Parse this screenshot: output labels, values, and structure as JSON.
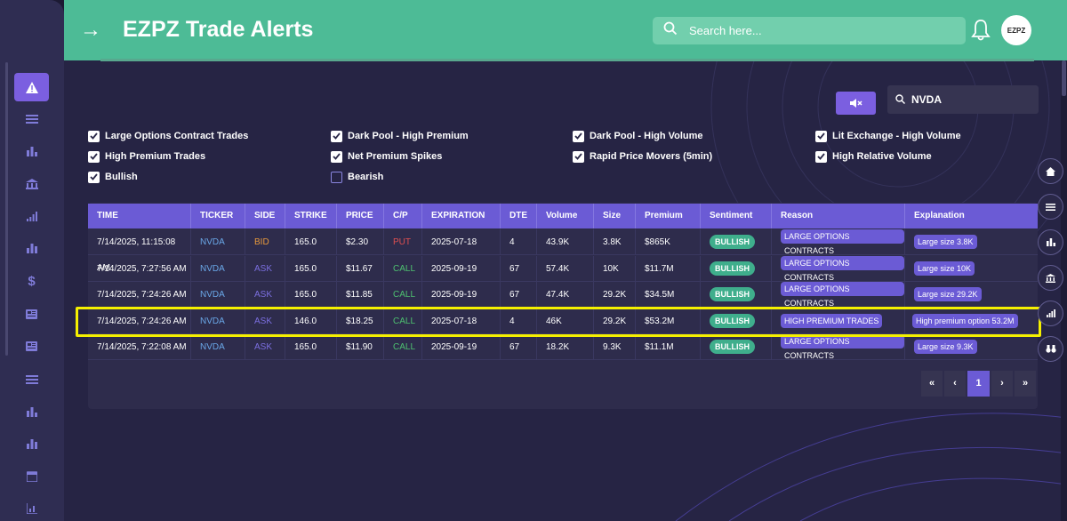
{
  "header": {
    "title": "EZPZ Trade Alerts",
    "search_placeholder": "Search here...",
    "avatar_text": "EZPZ"
  },
  "ticker_search": {
    "value": "NVDA"
  },
  "filters": [
    {
      "label": "Large Options Contract Trades",
      "checked": true
    },
    {
      "label": "Dark Pool - High Premium",
      "checked": true
    },
    {
      "label": "Dark Pool - High Volume",
      "checked": true
    },
    {
      "label": "Lit Exchange - High Volume",
      "checked": true
    },
    {
      "label": "High Premium Trades",
      "checked": true
    },
    {
      "label": "Net Premium Spikes",
      "checked": true
    },
    {
      "label": "Rapid Price Movers (5min)",
      "checked": true
    },
    {
      "label": "High Relative Volume",
      "checked": true
    },
    {
      "label": "Bullish",
      "checked": true
    },
    {
      "label": "Bearish",
      "checked": false
    }
  ],
  "table": {
    "headers": [
      "TIME",
      "TICKER",
      "SIDE",
      "STRIKE",
      "PRICE",
      "C/P",
      "EXPIRATION",
      "DTE",
      "Volume",
      "Size",
      "Premium",
      "Sentiment",
      "Reason",
      "Explanation"
    ],
    "rows": [
      {
        "time": "7/14/2025, 11:15:08 AM",
        "ticker": "NVDA",
        "side": "BID",
        "strike": "165.0",
        "price": "$2.30",
        "cp": "PUT",
        "expiration": "2025-07-18",
        "dte": "4",
        "volume": "43.9K",
        "size": "3.8K",
        "premium": "$865K",
        "sentiment": "BULLISH",
        "reason": "LARGE OPTIONS CONTRACTS",
        "explanation": "Large size 3.8K"
      },
      {
        "time": "7/14/2025, 7:27:56 AM",
        "ticker": "NVDA",
        "side": "ASK",
        "strike": "165.0",
        "price": "$11.67",
        "cp": "CALL",
        "expiration": "2025-09-19",
        "dte": "67",
        "volume": "57.4K",
        "size": "10K",
        "premium": "$11.7M",
        "sentiment": "BULLISH",
        "reason": "LARGE OPTIONS CONTRACTS",
        "explanation": "Large size 10K"
      },
      {
        "time": "7/14/2025, 7:24:26 AM",
        "ticker": "NVDA",
        "side": "ASK",
        "strike": "165.0",
        "price": "$11.85",
        "cp": "CALL",
        "expiration": "2025-09-19",
        "dte": "67",
        "volume": "47.4K",
        "size": "29.2K",
        "premium": "$34.5M",
        "sentiment": "BULLISH",
        "reason": "LARGE OPTIONS CONTRACTS",
        "explanation": "Large size 29.2K"
      },
      {
        "time": "7/14/2025, 7:24:26 AM",
        "ticker": "NVDA",
        "side": "ASK",
        "strike": "146.0",
        "price": "$18.25",
        "cp": "CALL",
        "expiration": "2025-07-18",
        "dte": "4",
        "volume": "46K",
        "size": "29.2K",
        "premium": "$53.2M",
        "sentiment": "BULLISH",
        "reason": "HIGH PREMIUM TRADES",
        "explanation": "High premium option 53.2M"
      },
      {
        "time": "7/14/2025, 7:22:08 AM",
        "ticker": "NVDA",
        "side": "ASK",
        "strike": "165.0",
        "price": "$11.90",
        "cp": "CALL",
        "expiration": "2025-09-19",
        "dte": "67",
        "volume": "18.2K",
        "size": "9.3K",
        "premium": "$11.1M",
        "sentiment": "BULLISH",
        "reason": "LARGE OPTIONS CONTRACTS",
        "explanation": "Large size 9.3K"
      }
    ]
  },
  "pagination": {
    "first": "«",
    "prev": "‹",
    "current": "1",
    "next": "›",
    "last": "»"
  },
  "colors": {
    "header": "#4dbb96",
    "accent": "#6b5bd5",
    "highlight": "#f5f000",
    "background": "#262444"
  }
}
